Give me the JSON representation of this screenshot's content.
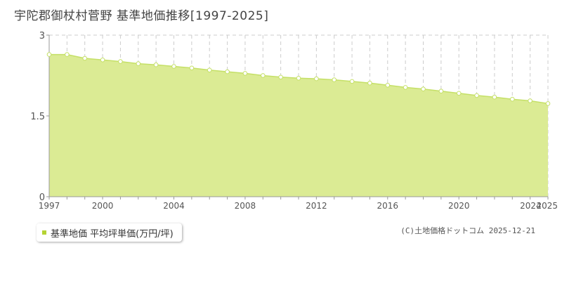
{
  "title": "宇陀郡御杖村菅野 基準地価推移[1997-2025]",
  "legend": {
    "label": "基準地価 平均坪単価(万円/坪)",
    "swatch_color": "#b5d334"
  },
  "copyright": "(C)土地価格ドットコム 2025-12-21",
  "colors": {
    "fill": "#dbeb94",
    "line": "#c5e067",
    "axis": "#999999",
    "grid": "#cccccc",
    "point_fill": "#ffffff"
  },
  "chart_data": {
    "type": "area",
    "title": "宇陀郡御杖村菅野 基準地価推移[1997-2025]",
    "series": [
      {
        "name": "基準地価 平均坪単価(万円/坪)",
        "x": [
          1997,
          1998,
          1999,
          2000,
          2001,
          2002,
          2003,
          2004,
          2005,
          2006,
          2007,
          2008,
          2009,
          2010,
          2011,
          2012,
          2013,
          2014,
          2015,
          2016,
          2017,
          2018,
          2019,
          2020,
          2021,
          2022,
          2023,
          2024,
          2025
        ],
        "values": [
          2.64,
          2.64,
          2.57,
          2.54,
          2.51,
          2.47,
          2.45,
          2.42,
          2.39,
          2.35,
          2.32,
          2.29,
          2.25,
          2.22,
          2.2,
          2.19,
          2.17,
          2.14,
          2.11,
          2.07,
          2.03,
          2.0,
          1.96,
          1.92,
          1.88,
          1.85,
          1.81,
          1.78,
          1.73
        ]
      }
    ],
    "xlim": [
      1997,
      2025
    ],
    "ylim": [
      0,
      3
    ],
    "x_ticks": [
      "1997",
      "2000",
      "2004",
      "2008",
      "2012",
      "2016",
      "2020",
      "2024",
      "2025"
    ],
    "y_ticks": [
      "0",
      "1.5",
      "3"
    ],
    "grid": true,
    "legend_position": "bottom-left"
  }
}
